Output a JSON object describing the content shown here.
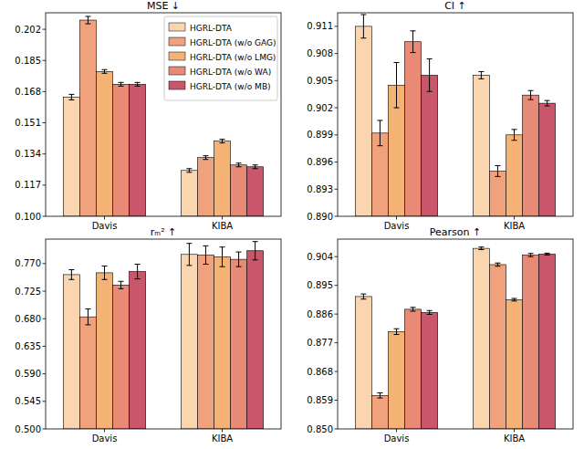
{
  "chart_data": [
    {
      "type": "bar",
      "title": "MSE ↓",
      "categories": [
        "Davis",
        "KIBA"
      ],
      "series": [
        {
          "name": "HGRL-DTA",
          "color": "#f9d5b0",
          "values": [
            0.165,
            0.125
          ],
          "errors": [
            0.0015,
            0.001
          ]
        },
        {
          "name": "HGRL-DTA (w/o GAG)",
          "color": "#f0a27c",
          "values": [
            0.207,
            0.132
          ],
          "errors": [
            0.002,
            0.001
          ]
        },
        {
          "name": "HGRL-DTA (w/o LMG)",
          "color": "#f4b274",
          "values": [
            0.179,
            0.141
          ],
          "errors": [
            0.001,
            0.001
          ]
        },
        {
          "name": "HGRL-DTA (w/o WA)",
          "color": "#e88a76",
          "values": [
            0.172,
            0.128
          ],
          "errors": [
            0.001,
            0.001
          ]
        },
        {
          "name": "HGRL-DTA (w/o MB)",
          "color": "#c9566a",
          "values": [
            0.172,
            0.127
          ],
          "errors": [
            0.001,
            0.001
          ]
        }
      ],
      "ylim": [
        0.1,
        0.211
      ],
      "yticks": [
        {
          "value": 0.1,
          "label": "0.100"
        },
        0.117,
        0.134,
        0.151,
        0.168,
        0.185,
        0.202
      ],
      "legend": "upper right"
    },
    {
      "type": "bar",
      "title": "CI ↑",
      "categories": [
        "Davis",
        "KIBA"
      ],
      "series": [
        {
          "name": "HGRL-DTA",
          "color": "#f9d5b0",
          "values": [
            0.911,
            0.9056
          ],
          "errors": [
            0.0013,
            0.0004
          ]
        },
        {
          "name": "HGRL-DTA (w/o GAG)",
          "color": "#f0a27c",
          "values": [
            0.8992,
            0.895
          ],
          "errors": [
            0.0014,
            0.0006
          ]
        },
        {
          "name": "HGRL-DTA (w/o LMG)",
          "color": "#f4b274",
          "values": [
            0.9045,
            0.899
          ],
          "errors": [
            0.0025,
            0.0006
          ]
        },
        {
          "name": "HGRL-DTA (w/o WA)",
          "color": "#e88a76",
          "values": [
            0.9093,
            0.9034
          ],
          "errors": [
            0.0012,
            0.0005
          ]
        },
        {
          "name": "HGRL-DTA (w/o MB)",
          "color": "#c9566a",
          "values": [
            0.9056,
            0.9025
          ],
          "errors": [
            0.0018,
            0.0003
          ]
        }
      ],
      "ylim": [
        0.89,
        0.9125
      ],
      "yticks": [
        {
          "value": 0.89,
          "label": "0.890"
        },
        0.893,
        0.896,
        0.899,
        0.902,
        0.905,
        0.908,
        0.911
      ]
    },
    {
      "type": "bar",
      "title": "rₘ² ↑",
      "categories": [
        "Davis",
        "KIBA"
      ],
      "series": [
        {
          "name": "HGRL-DTA",
          "color": "#f9d5b0",
          "values": [
            0.752,
            0.785
          ],
          "errors": [
            0.008,
            0.018
          ]
        },
        {
          "name": "HGRL-DTA (w/o GAG)",
          "color": "#f0a27c",
          "values": [
            0.683,
            0.784
          ],
          "errors": [
            0.013,
            0.015
          ]
        },
        {
          "name": "HGRL-DTA (w/o LMG)",
          "color": "#f4b274",
          "values": [
            0.755,
            0.781
          ],
          "errors": [
            0.011,
            0.016
          ]
        },
        {
          "name": "HGRL-DTA (w/o WA)",
          "color": "#e88a76",
          "values": [
            0.735,
            0.777
          ],
          "errors": [
            0.006,
            0.012
          ]
        },
        {
          "name": "HGRL-DTA (w/o MB)",
          "color": "#c9566a",
          "values": [
            0.757,
            0.791
          ],
          "errors": [
            0.012,
            0.015
          ]
        }
      ],
      "ylim": [
        0.5,
        0.81
      ],
      "yticks": [
        {
          "value": 0.5,
          "label": "0.500"
        },
        0.545,
        {
          "value": 0.59,
          "label": "0.590"
        },
        0.635,
        {
          "value": 0.68,
          "label": "0.680"
        },
        0.725,
        {
          "value": 0.77,
          "label": "0.770"
        }
      ]
    },
    {
      "type": "bar",
      "title": "Pearson ↑",
      "categories": [
        "Davis",
        "KIBA"
      ],
      "series": [
        {
          "name": "HGRL-DTA",
          "color": "#f9d5b0",
          "values": [
            0.8915,
            0.9066
          ],
          "errors": [
            0.0008,
            0.0004
          ]
        },
        {
          "name": "HGRL-DTA (w/o GAG)",
          "color": "#f0a27c",
          "values": [
            0.8605,
            0.9015
          ],
          "errors": [
            0.0008,
            0.0005
          ]
        },
        {
          "name": "HGRL-DTA (w/o LMG)",
          "color": "#f4b274",
          "values": [
            0.8805,
            0.8905
          ],
          "errors": [
            0.0009,
            0.0004
          ]
        },
        {
          "name": "HGRL-DTA (w/o WA)",
          "color": "#e88a76",
          "values": [
            0.8875,
            0.9045
          ],
          "errors": [
            0.0006,
            0.0005
          ]
        },
        {
          "name": "HGRL-DTA (w/o MB)",
          "color": "#c9566a",
          "values": [
            0.8865,
            0.9048
          ],
          "errors": [
            0.0006,
            0.0003
          ]
        }
      ],
      "ylim": [
        0.85,
        0.9095
      ],
      "yticks": [
        {
          "value": 0.85,
          "label": "0.850"
        },
        0.859,
        0.868,
        0.877,
        0.886,
        0.895,
        0.904
      ]
    }
  ]
}
